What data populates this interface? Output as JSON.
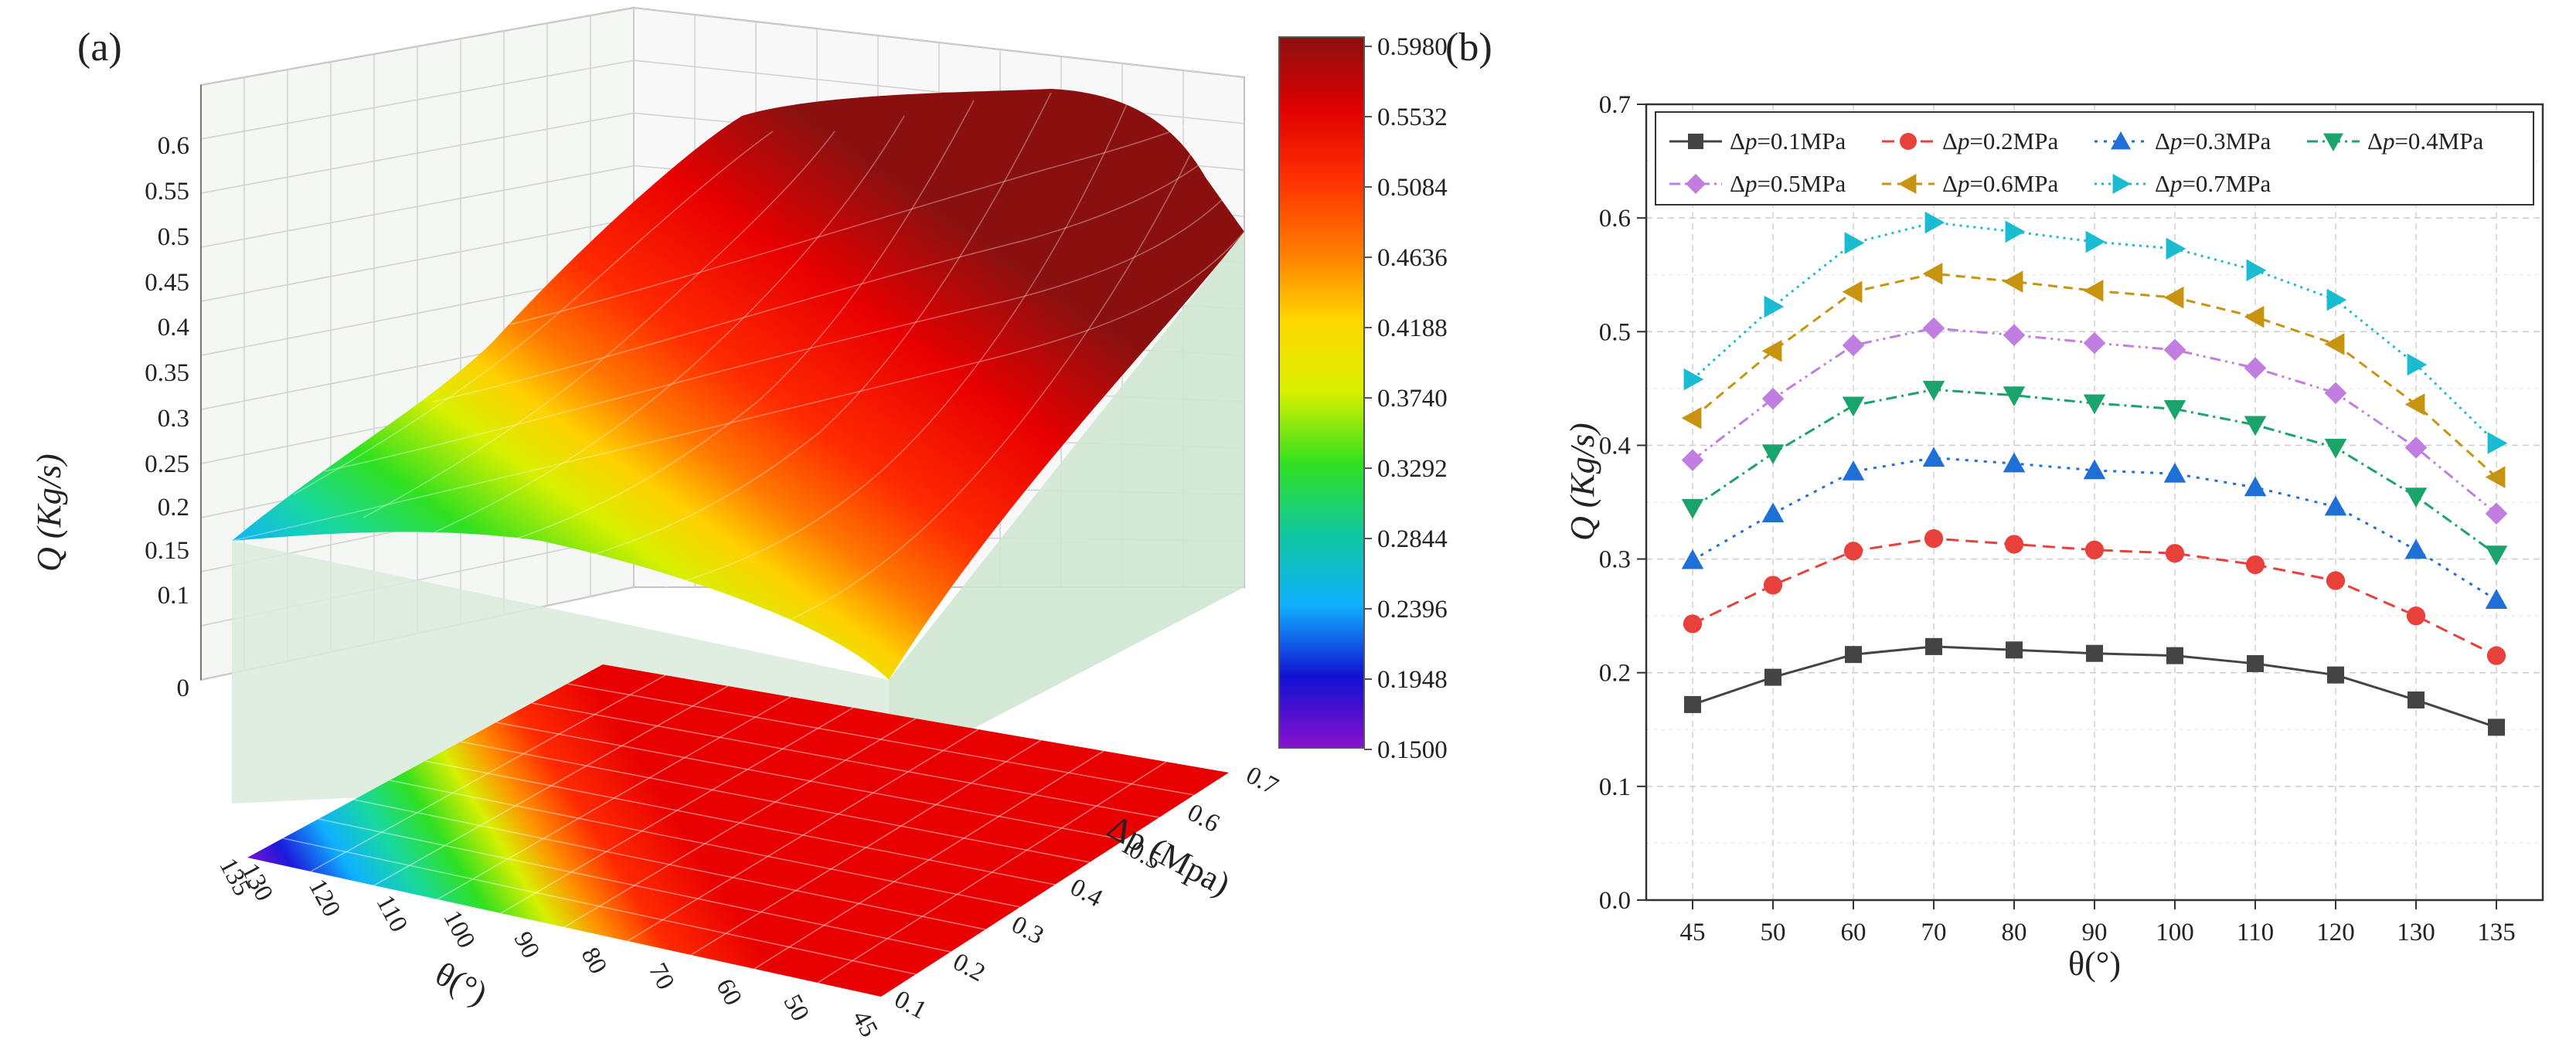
{
  "chart_data": [
    {
      "panel": "(a)",
      "type": "surface3d",
      "zlabel": "Q (Kg/s)",
      "xlabel": "θ(°)",
      "ylabel": "Δp (Mpa)",
      "z_ticks": [
        "0.6",
        "0.55",
        "0.5",
        "0.45",
        "0.4",
        "0.35",
        "0.3",
        "0.25",
        "0.2",
        "0.15",
        "0.1",
        "0"
      ],
      "theta_ticks": [
        "135",
        "130",
        "120",
        "110",
        "100",
        "90",
        "80",
        "70",
        "60",
        "50",
        "45"
      ],
      "dp_ticks": [
        "0.7",
        "0.6",
        "0.5",
        "0.4",
        "0.3",
        "0.2",
        "0.1"
      ],
      "colorbar": {
        "ticks": [
          "0.5980",
          "0.5532",
          "0.5084",
          "0.4636",
          "0.4188",
          "0.3740",
          "0.3292",
          "0.2844",
          "0.2396",
          "0.1948",
          "0.1500"
        ],
        "min": 0.15,
        "max": 0.598,
        "colors": [
          "#8a1010",
          "#e00000",
          "#ff3000",
          "#ff7a00",
          "#ffd800",
          "#d8f000",
          "#30e020",
          "#10c8a0",
          "#10b0ff",
          "#1010d0",
          "#8a10d0"
        ]
      }
    },
    {
      "panel": "(b)",
      "type": "line",
      "xlabel": "θ(°)",
      "ylabel": "Q (Kg/s)",
      "categories": [
        "45",
        "50",
        "60",
        "70",
        "80",
        "90",
        "100",
        "110",
        "120",
        "130",
        "135"
      ],
      "ylim": [
        0.0,
        0.7
      ],
      "yticks": [
        "0.0",
        "0.1",
        "0.2",
        "0.3",
        "0.4",
        "0.5",
        "0.6",
        "0.7"
      ],
      "series": [
        {
          "name": "Δp=0.1MPa",
          "prefix": "Δ",
          "var": "p",
          "suffix": "=0.1MPa",
          "color": "#444444",
          "marker": "square",
          "dash": "none",
          "values": [
            0.172,
            0.196,
            0.216,
            0.223,
            0.22,
            0.217,
            0.215,
            0.208,
            0.198,
            0.176,
            0.152
          ]
        },
        {
          "name": "Δp=0.2MPa",
          "prefix": "Δ",
          "var": "p",
          "suffix": "=0.2MPa",
          "color": "#e8403a",
          "marker": "circle",
          "dash": "16,9",
          "values": [
            0.243,
            0.277,
            0.307,
            0.318,
            0.313,
            0.308,
            0.305,
            0.295,
            0.281,
            0.25,
            0.215
          ]
        },
        {
          "name": "Δp=0.3MPa",
          "prefix": "Δ",
          "var": "p",
          "suffix": "=0.3MPa",
          "color": "#1e6fd6",
          "marker": "triangle-up",
          "dash": "4,8",
          "values": [
            0.299,
            0.34,
            0.377,
            0.389,
            0.384,
            0.378,
            0.375,
            0.363,
            0.346,
            0.308,
            0.264
          ]
        },
        {
          "name": "Δp=0.4MPa",
          "prefix": "Δ",
          "var": "p",
          "suffix": "=0.4MPa",
          "color": "#1aa36a",
          "marker": "triangle-down",
          "dash": "14,6,3,6",
          "values": [
            0.345,
            0.393,
            0.435,
            0.449,
            0.444,
            0.437,
            0.432,
            0.418,
            0.398,
            0.355,
            0.304
          ]
        },
        {
          "name": "Δp=0.5MPa",
          "prefix": "Δ",
          "var": "p",
          "suffix": "=0.5MPa",
          "color": "#c07ee0",
          "marker": "diamond",
          "dash": "14,6,3,6,3,6",
          "values": [
            0.387,
            0.441,
            0.488,
            0.503,
            0.497,
            0.49,
            0.484,
            0.468,
            0.446,
            0.398,
            0.34
          ]
        },
        {
          "name": "Δp=0.6MPa",
          "prefix": "Δ",
          "var": "p",
          "suffix": "=0.6MPa",
          "color": "#c8930e",
          "marker": "triangle-left",
          "dash": "12,8",
          "values": [
            0.424,
            0.483,
            0.535,
            0.551,
            0.544,
            0.536,
            0.53,
            0.513,
            0.489,
            0.436,
            0.372
          ]
        },
        {
          "name": "Δp=0.7MPa",
          "prefix": "Δ",
          "var": "p",
          "suffix": "=0.7MPa",
          "color": "#19bcd0",
          "marker": "triangle-right",
          "dash": "3,6",
          "values": [
            0.458,
            0.522,
            0.578,
            0.596,
            0.588,
            0.579,
            0.573,
            0.554,
            0.528,
            0.471,
            0.402
          ]
        }
      ]
    }
  ]
}
